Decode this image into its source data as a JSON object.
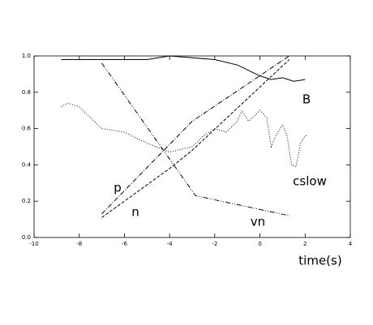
{
  "chart_data": {
    "type": "line",
    "x_label": "time(s)",
    "xlim": [
      -10,
      4
    ],
    "xticks": [
      -10,
      -8,
      -6,
      -4,
      -2,
      0,
      2,
      4
    ],
    "ylim": [
      0,
      1
    ],
    "yticks": [
      {
        "value": 0,
        "label": "0.0"
      },
      0.2,
      0.4,
      0.6,
      0.8,
      {
        "value": 1,
        "label": "1.0"
      }
    ],
    "series": [
      {
        "name": "B",
        "color": "#000000",
        "line_style": "solid",
        "x": [
          -8.8,
          -7,
          -5,
          -4.5,
          -4,
          -3,
          -2,
          -1,
          0,
          0.5,
          1,
          1.5,
          2
        ],
        "values": [
          0.98,
          0.98,
          0.98,
          0.99,
          1.0,
          0.99,
          0.98,
          0.95,
          0.89,
          0.87,
          0.88,
          0.86,
          0.87
        ]
      },
      {
        "name": "cslow",
        "color": "#000000",
        "line_style": "dotted",
        "x": [
          -8.8,
          -8.5,
          -8,
          -7.5,
          -7,
          -6,
          -5,
          -4,
          -3,
          -2.5,
          -2,
          -1.5,
          -1,
          -0.8,
          -0.5,
          0,
          0.3,
          0.5,
          0.7,
          1,
          1.2,
          1.4,
          1.6,
          1.8,
          2,
          2.1
        ],
        "values": [
          0.72,
          0.74,
          0.72,
          0.66,
          0.6,
          0.58,
          0.52,
          0.47,
          0.5,
          0.56,
          0.6,
          0.58,
          0.64,
          0.7,
          0.64,
          0.7,
          0.66,
          0.5,
          0.56,
          0.62,
          0.56,
          0.4,
          0.39,
          0.52,
          0.56,
          0.56
        ]
      },
      {
        "name": "p",
        "color": "#000000",
        "line_style": "dashdot",
        "x": [
          -7,
          -3,
          1.3
        ],
        "values": [
          0.13,
          0.64,
          1.0
        ]
      },
      {
        "name": "n",
        "color": "#000000",
        "line_style": "dashed",
        "x": [
          -7,
          -4,
          -3,
          1.3
        ],
        "values": [
          0.11,
          0.38,
          0.48,
          0.98
        ]
      },
      {
        "name": "vn",
        "color": "#000000",
        "line_style": "dashdotdot",
        "x": [
          -7,
          -2.85,
          1.3
        ],
        "values": [
          0.96,
          0.23,
          0.12
        ]
      }
    ]
  }
}
